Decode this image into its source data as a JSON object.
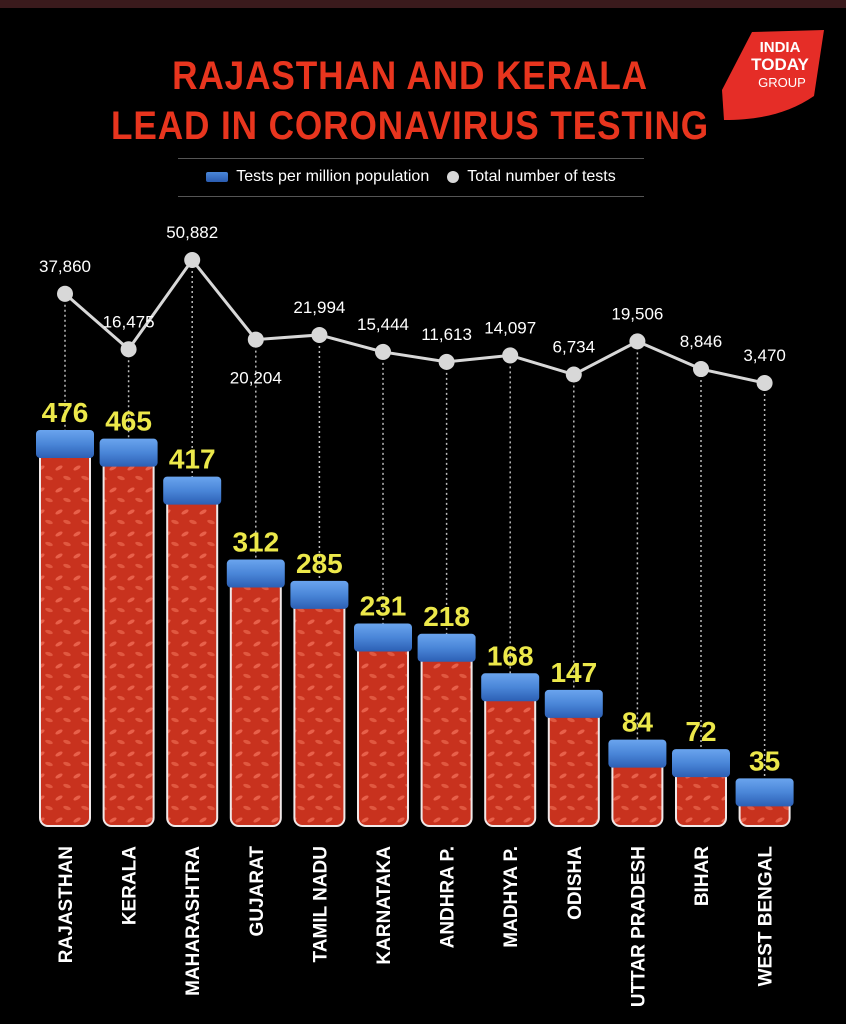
{
  "header": {
    "title_line1": "RAJASTHAN AND KERALA",
    "title_line2": "LEAD IN CORONAVIRUS TESTING",
    "title_color": "#e8351e",
    "logo_line1": "INDIA",
    "logo_line2": "TODAY",
    "logo_line3": "GROUP",
    "logo_color": "#e52d27"
  },
  "legend": {
    "bars_label": "Tests per million population",
    "dots_label": "Total number of tests"
  },
  "colors": {
    "tube_fill": "#c8321e",
    "cap": "#4a86d8",
    "line": "#d8d8d8",
    "value_label": "#ece84a",
    "total_label": "#ffffff"
  },
  "chart_data": {
    "type": "bar",
    "title": "RAJASTHAN AND KERALA LEAD IN CORONAVIRUS TESTING",
    "categories": [
      "RAJASTHAN",
      "KERALA",
      "MAHARASHTRA",
      "GUJARAT",
      "TAMIL NADU",
      "KARNATAKA",
      "ANDHRA P.",
      "MADHYA P.",
      "ODISHA",
      "UTTAR PRADESH",
      "BIHAR",
      "WEST BENGAL"
    ],
    "series": [
      {
        "name": "Tests per million population",
        "type": "bar",
        "values": [
          476,
          465,
          417,
          312,
          285,
          231,
          218,
          168,
          147,
          84,
          72,
          35
        ],
        "labels": [
          "476",
          "465",
          "417",
          "312",
          "285",
          "231",
          "218",
          "168",
          "147",
          "84",
          "72",
          "35"
        ]
      },
      {
        "name": "Total number of tests",
        "type": "line",
        "values": [
          37860,
          16475,
          50882,
          20204,
          21994,
          15444,
          11613,
          14097,
          6734,
          19506,
          8846,
          3470
        ],
        "labels": [
          "37,860",
          "16,475",
          "50,882",
          "20,204",
          "21,994",
          "15,444",
          "11,613",
          "14,097",
          "6,734",
          "19,506",
          "8,846",
          "3,470"
        ]
      }
    ],
    "xlabel": "",
    "ylabel": ""
  }
}
